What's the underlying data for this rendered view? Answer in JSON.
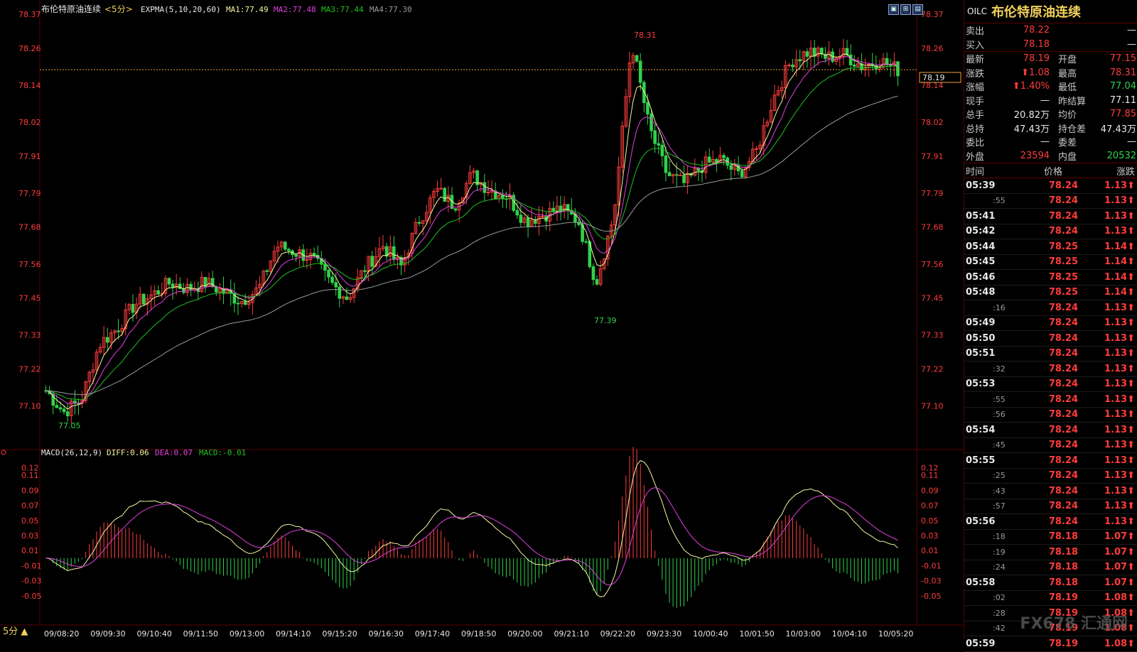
{
  "header": {
    "symbol_name": "布伦特原油连续",
    "period_label": "<5分>",
    "indicator": "EXPMA(5,10,20,60)",
    "ma1": "MA1:77.49",
    "ma2": "MA2:77.48",
    "ma3": "MA3:77.44",
    "ma4": "MA4:77.30"
  },
  "macd_header": {
    "name": "MACD(26,12,9)",
    "diff": "DIFF:0.06",
    "dea": "DEA:0.07",
    "macd": "MACD:-0.01"
  },
  "period_button": "5分 ▲",
  "current_price_tag": "78.19",
  "high_label": "78.31",
  "low_label_mid": "77.39",
  "low_label_left": "77.05",
  "colors": {
    "up": "#ff3c3c",
    "down": "#2fd34a",
    "ma1": "#f5f5a0",
    "ma2": "#e040e0",
    "ma3": "#20c020",
    "ma4": "#9a9a9a",
    "axis_text": "#ff3c3c",
    "grid": "#5a0000"
  },
  "chart_data": [
    {
      "type": "candlestick",
      "title": "布伦特原油连续<5分>",
      "y_ticks": [
        "78.37",
        "78.26",
        "78.14",
        "78.02",
        "77.91",
        "77.79",
        "77.68",
        "77.56",
        "77.45",
        "77.33",
        "77.22",
        "77.10"
      ],
      "ylim": [
        77.0,
        78.37
      ],
      "x_ticks": [
        "09/08:20",
        "09/09:30",
        "09/10:40",
        "09/11:50",
        "09/13:00",
        "09/14:10",
        "09/15:20",
        "09/16:30",
        "09/17:40",
        "09/18:50",
        "09/20:00",
        "09/21:10",
        "09/22:20",
        "09/23:30",
        "10/00:40",
        "10/01:50",
        "10/03:00",
        "10/04:10",
        "10/05:20"
      ],
      "last_price": 78.19,
      "high": 78.31,
      "low": 77.05,
      "ma_series": [
        {
          "name": "MA1",
          "value": 77.49
        },
        {
          "name": "MA2",
          "value": 77.48
        },
        {
          "name": "MA3",
          "value": 77.44
        },
        {
          "name": "MA4",
          "value": 77.3
        }
      ],
      "close_anchors": [
        77.15,
        77.08,
        77.12,
        77.3,
        77.35,
        77.43,
        77.46,
        77.5,
        77.48,
        77.5,
        77.47,
        77.44,
        77.48,
        77.62,
        77.6,
        77.58,
        77.5,
        77.45,
        77.55,
        77.62,
        77.55,
        77.7,
        77.8,
        77.75,
        77.85,
        77.8,
        77.78,
        77.7,
        77.72,
        77.74,
        77.7,
        77.5,
        77.72,
        78.28,
        78.0,
        77.85,
        77.82,
        77.88,
        77.9,
        77.85,
        77.92,
        78.1,
        78.22,
        78.25,
        78.23,
        78.24,
        78.2,
        78.22,
        78.19
      ]
    },
    {
      "type": "macd",
      "title": "MACD(26,12,9)",
      "y_ticks": [
        "0.12",
        "0.11",
        "0.09",
        "0.07",
        "0.05",
        "0.03",
        "0.01",
        "-0.01",
        "-0.03",
        "-0.05"
      ],
      "ylim": [
        -0.07,
        0.13
      ],
      "diff": 0.06,
      "dea": 0.07,
      "macd": -0.01
    }
  ],
  "quote_panel": {
    "code": "OILC",
    "name": "布伦特原油连续",
    "rows": [
      {
        "l1": "卖出",
        "v1": "78.22",
        "c1": "red",
        "l2": "",
        "v2": "—",
        "c2": "white"
      },
      {
        "l1": "买入",
        "v1": "78.18",
        "c1": "red",
        "l2": "",
        "v2": "—",
        "c2": "white"
      },
      {
        "l1": "最新",
        "v1": "78.19",
        "c1": "red",
        "l2": "开盘",
        "v2": "77.15",
        "c2": "red"
      },
      {
        "l1": "涨跌",
        "v1": "⬆1.08",
        "c1": "red",
        "l2": "最高",
        "v2": "78.31",
        "c2": "red"
      },
      {
        "l1": "涨幅",
        "v1": "⬆1.40%",
        "c1": "red",
        "l2": "最低",
        "v2": "77.04",
        "c2": "green"
      },
      {
        "l1": "现手",
        "v1": "—",
        "c1": "white",
        "l2": "昨结算",
        "v2": "77.11",
        "c2": "white"
      },
      {
        "l1": "总手",
        "v1": "20.82万",
        "c1": "white",
        "l2": "均价",
        "v2": "77.85",
        "c2": "red"
      },
      {
        "l1": "总持",
        "v1": "47.43万",
        "c1": "white",
        "l2": "持仓差",
        "v2": "47.43万",
        "c2": "white"
      },
      {
        "l1": "委比",
        "v1": "—",
        "c1": "white",
        "l2": "委差",
        "v2": "—",
        "c2": "white"
      },
      {
        "l1": "外盘",
        "v1": "23594",
        "c1": "red",
        "l2": "内盘",
        "v2": "20532",
        "c2": "green"
      }
    ],
    "tick_header": {
      "time": "时间",
      "price": "价格",
      "change": "涨跌"
    },
    "ticks": [
      {
        "time": "05:39",
        "sub": false,
        "price": "78.24",
        "chg": "1.13⬆"
      },
      {
        "time": ":55",
        "sub": true,
        "price": "78.24",
        "chg": "1.13⬆"
      },
      {
        "time": "05:41",
        "sub": false,
        "price": "78.24",
        "chg": "1.13⬆"
      },
      {
        "time": "05:42",
        "sub": false,
        "price": "78.24",
        "chg": "1.13⬆"
      },
      {
        "time": "05:44",
        "sub": false,
        "price": "78.25",
        "chg": "1.14⬆"
      },
      {
        "time": "05:45",
        "sub": false,
        "price": "78.25",
        "chg": "1.14⬆"
      },
      {
        "time": "05:46",
        "sub": false,
        "price": "78.25",
        "chg": "1.14⬆"
      },
      {
        "time": "05:48",
        "sub": false,
        "price": "78.25",
        "chg": "1.14⬆"
      },
      {
        "time": ":16",
        "sub": true,
        "price": "78.24",
        "chg": "1.13⬆"
      },
      {
        "time": "05:49",
        "sub": false,
        "price": "78.24",
        "chg": "1.13⬆"
      },
      {
        "time": "05:50",
        "sub": false,
        "price": "78.24",
        "chg": "1.13⬆"
      },
      {
        "time": "05:51",
        "sub": false,
        "price": "78.24",
        "chg": "1.13⬆"
      },
      {
        "time": ":32",
        "sub": true,
        "price": "78.24",
        "chg": "1.13⬆"
      },
      {
        "time": "05:53",
        "sub": false,
        "price": "78.24",
        "chg": "1.13⬆"
      },
      {
        "time": ":55",
        "sub": true,
        "price": "78.24",
        "chg": "1.13⬆"
      },
      {
        "time": ":56",
        "sub": true,
        "price": "78.24",
        "chg": "1.13⬆"
      },
      {
        "time": "05:54",
        "sub": false,
        "price": "78.24",
        "chg": "1.13⬆"
      },
      {
        "time": ":45",
        "sub": true,
        "price": "78.24",
        "chg": "1.13⬆"
      },
      {
        "time": "05:55",
        "sub": false,
        "price": "78.24",
        "chg": "1.13⬆"
      },
      {
        "time": ":25",
        "sub": true,
        "price": "78.24",
        "chg": "1.13⬆"
      },
      {
        "time": ":43",
        "sub": true,
        "price": "78.24",
        "chg": "1.13⬆"
      },
      {
        "time": ":57",
        "sub": true,
        "price": "78.24",
        "chg": "1.13⬆"
      },
      {
        "time": "05:56",
        "sub": false,
        "price": "78.24",
        "chg": "1.13⬆"
      },
      {
        "time": ":18",
        "sub": true,
        "price": "78.18",
        "chg": "1.07⬆"
      },
      {
        "time": ":19",
        "sub": true,
        "price": "78.18",
        "chg": "1.07⬆"
      },
      {
        "time": ":24",
        "sub": true,
        "price": "78.18",
        "chg": "1.07⬆"
      },
      {
        "time": "05:58",
        "sub": false,
        "price": "78.18",
        "chg": "1.07⬆"
      },
      {
        "time": ":02",
        "sub": true,
        "price": "78.19",
        "chg": "1.08⬆"
      },
      {
        "time": ":28",
        "sub": true,
        "price": "78.19",
        "chg": "1.08⬆"
      },
      {
        "time": ":42",
        "sub": true,
        "price": "78.19",
        "chg": "1.08⬆"
      },
      {
        "time": "05:59",
        "sub": false,
        "price": "78.19",
        "chg": "1.08⬆"
      }
    ]
  },
  "watermark": "FX678 汇通网"
}
